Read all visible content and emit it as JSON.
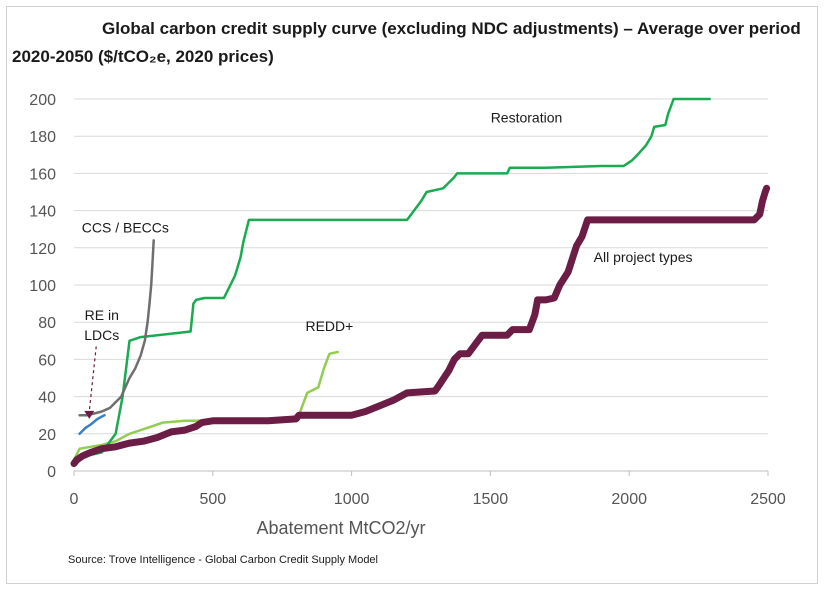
{
  "title": "Global carbon credit supply curve (excluding NDC adjustments) – Average over period 2020-2050 ($/tCO₂e, 2020 prices)",
  "source": "Source: Trove Intelligence - Global Carbon Credit Supply Model",
  "chart_data": {
    "type": "line",
    "title": "Global carbon credit supply curve (excluding NDC adjustments) – Average over period 2020-2050 ($/tCO₂e, 2020 prices)",
    "xlabel": "Abatement MtCO2/yr",
    "ylabel": "",
    "xlim": [
      0,
      2500
    ],
    "ylim": [
      0,
      200
    ],
    "x_ticks": [
      0,
      500,
      1000,
      1500,
      2000,
      2500
    ],
    "y_ticks": [
      0,
      20,
      40,
      60,
      80,
      100,
      120,
      140,
      160,
      180,
      200
    ],
    "grid": "horizontal",
    "series": [
      {
        "name": "All project types",
        "color": "#6b1d45",
        "points": [
          [
            0,
            4
          ],
          [
            10,
            6
          ],
          [
            30,
            8
          ],
          [
            60,
            10
          ],
          [
            100,
            12
          ],
          [
            150,
            13
          ],
          [
            200,
            15
          ],
          [
            250,
            16
          ],
          [
            300,
            18
          ],
          [
            350,
            21
          ],
          [
            400,
            22
          ],
          [
            440,
            24
          ],
          [
            460,
            26
          ],
          [
            500,
            27
          ],
          [
            600,
            27
          ],
          [
            700,
            27
          ],
          [
            800,
            28
          ],
          [
            810,
            30
          ],
          [
            900,
            30
          ],
          [
            1000,
            30
          ],
          [
            1050,
            32
          ],
          [
            1100,
            35
          ],
          [
            1150,
            38
          ],
          [
            1200,
            42
          ],
          [
            1300,
            43
          ],
          [
            1310,
            45
          ],
          [
            1350,
            54
          ],
          [
            1370,
            60
          ],
          [
            1390,
            63
          ],
          [
            1420,
            63
          ],
          [
            1450,
            69
          ],
          [
            1470,
            73
          ],
          [
            1560,
            73
          ],
          [
            1580,
            76
          ],
          [
            1640,
            76
          ],
          [
            1660,
            84
          ],
          [
            1670,
            92
          ],
          [
            1700,
            92
          ],
          [
            1730,
            93
          ],
          [
            1750,
            100
          ],
          [
            1780,
            107
          ],
          [
            1810,
            121
          ],
          [
            1830,
            126
          ],
          [
            1850,
            135
          ],
          [
            2000,
            135
          ],
          [
            2200,
            135
          ],
          [
            2450,
            135
          ],
          [
            2470,
            138
          ],
          [
            2480,
            145
          ],
          [
            2490,
            150
          ],
          [
            2495,
            152
          ]
        ]
      },
      {
        "name": "Restoration",
        "color": "#1aab50",
        "points": [
          [
            0,
            3
          ],
          [
            40,
            8
          ],
          [
            100,
            10
          ],
          [
            150,
            20
          ],
          [
            175,
            40
          ],
          [
            200,
            70
          ],
          [
            240,
            72
          ],
          [
            300,
            73
          ],
          [
            420,
            75
          ],
          [
            430,
            90
          ],
          [
            440,
            92
          ],
          [
            470,
            93
          ],
          [
            540,
            93
          ],
          [
            580,
            105
          ],
          [
            600,
            115
          ],
          [
            610,
            123
          ],
          [
            630,
            135
          ],
          [
            700,
            135
          ],
          [
            1000,
            135
          ],
          [
            1200,
            135
          ],
          [
            1250,
            145
          ],
          [
            1270,
            150
          ],
          [
            1330,
            152
          ],
          [
            1370,
            158
          ],
          [
            1380,
            160
          ],
          [
            1560,
            160
          ],
          [
            1570,
            163
          ],
          [
            1700,
            163
          ],
          [
            1900,
            164
          ],
          [
            1980,
            164
          ],
          [
            2010,
            167
          ],
          [
            2030,
            170
          ],
          [
            2060,
            175
          ],
          [
            2080,
            180
          ],
          [
            2090,
            185
          ],
          [
            2130,
            186
          ],
          [
            2140,
            192
          ],
          [
            2160,
            200
          ],
          [
            2290,
            200
          ]
        ]
      },
      {
        "name": "REDD+",
        "color": "#92cc50",
        "points": [
          [
            0,
            6
          ],
          [
            20,
            12
          ],
          [
            60,
            13
          ],
          [
            100,
            14
          ],
          [
            150,
            16
          ],
          [
            200,
            20
          ],
          [
            280,
            24
          ],
          [
            320,
            26
          ],
          [
            400,
            27
          ],
          [
            600,
            27
          ],
          [
            780,
            27
          ],
          [
            810,
            30
          ],
          [
            830,
            38
          ],
          [
            840,
            42
          ],
          [
            880,
            45
          ],
          [
            900,
            55
          ],
          [
            920,
            63
          ],
          [
            950,
            64
          ]
        ]
      },
      {
        "name": "CCS / BECCs",
        "color": "#6e6e6e",
        "points": [
          [
            20,
            30
          ],
          [
            50,
            30
          ],
          [
            100,
            32
          ],
          [
            130,
            34
          ],
          [
            170,
            40
          ],
          [
            200,
            50
          ],
          [
            220,
            55
          ],
          [
            240,
            62
          ],
          [
            255,
            70
          ],
          [
            265,
            80
          ],
          [
            272,
            90
          ],
          [
            278,
            100
          ],
          [
            282,
            110
          ],
          [
            285,
            118
          ],
          [
            287,
            124
          ]
        ]
      },
      {
        "name": "RE in LDCs",
        "color": "#3a80c8",
        "points": [
          [
            20,
            20
          ],
          [
            40,
            23
          ],
          [
            60,
            25
          ],
          [
            85,
            28
          ],
          [
            110,
            30
          ]
        ]
      }
    ],
    "annotations": [
      {
        "text": "Restoration",
        "x": 1630,
        "y": 190
      },
      {
        "text": "All project types",
        "x": 2050,
        "y": 115
      },
      {
        "text": "CCS / BECCs",
        "x": 185,
        "y": 131
      },
      {
        "text": "REDD+",
        "x": 920,
        "y": 78
      },
      {
        "text": "RE in",
        "x": 100,
        "y": 84
      },
      {
        "text": "LDCs",
        "x": 100,
        "y": 73
      }
    ]
  }
}
